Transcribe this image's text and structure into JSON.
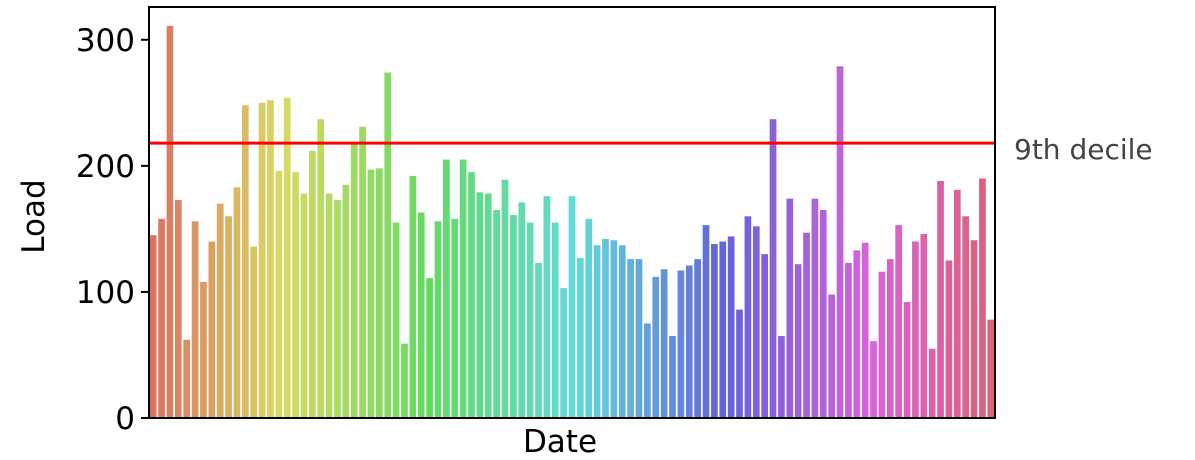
{
  "chart_data": {
    "type": "bar",
    "xlabel": "Date",
    "ylabel": "Load",
    "ylim": [
      0,
      326
    ],
    "yticks": [
      0,
      100,
      200,
      300
    ],
    "x_tick_labels_shown": false,
    "grid": false,
    "legend": "none",
    "palette": "husl gradient from red through orange, green, teal, blue, purple to pink",
    "values": [
      145,
      158,
      311,
      173,
      62,
      156,
      108,
      140,
      170,
      160,
      183,
      248,
      136,
      250,
      252,
      196,
      254,
      195,
      178,
      212,
      237,
      178,
      173,
      185,
      218,
      231,
      197,
      198,
      274,
      155,
      59,
      192,
      163,
      111,
      156,
      205,
      158,
      205,
      195,
      179,
      178,
      165,
      189,
      161,
      171,
      155,
      123,
      176,
      155,
      103,
      176,
      127,
      158,
      137,
      142,
      141,
      137,
      126,
      126,
      75,
      112,
      118,
      65,
      117,
      121,
      126,
      153,
      138,
      140,
      144,
      86,
      160,
      152,
      130,
      237,
      65,
      174,
      122,
      147,
      174,
      165,
      98,
      279,
      123,
      133,
      139,
      61,
      116,
      126,
      153,
      92,
      140,
      146,
      55,
      188,
      125,
      181,
      160,
      141,
      190,
      78
    ],
    "reference_line": {
      "value": 218,
      "label": "9th decile",
      "color": "#ff0000"
    }
  }
}
